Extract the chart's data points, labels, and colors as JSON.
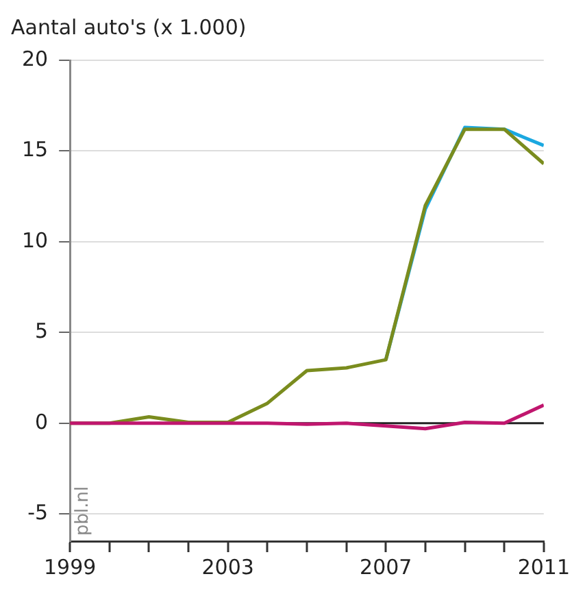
{
  "chart_data": {
    "type": "line",
    "title": "Aantal auto's (x 1.000)",
    "x": [
      1999,
      2000,
      2001,
      2002,
      2003,
      2004,
      2005,
      2006,
      2007,
      2008,
      2009,
      2010,
      2011
    ],
    "series": [
      {
        "color": "#1ba8e0",
        "values": [
          null,
          null,
          null,
          null,
          null,
          null,
          null,
          null,
          3.5,
          11.8,
          16.3,
          16.2,
          15.3
        ]
      },
      {
        "color": "#7a8c1e",
        "values": [
          0,
          0,
          0.35,
          0.05,
          0.05,
          1.1,
          2.9,
          3.05,
          3.5,
          12,
          16.2,
          16.2,
          14.3
        ]
      },
      {
        "color": "#c0166e",
        "values": [
          0,
          0,
          0,
          0,
          0,
          0,
          -0.05,
          0,
          -0.15,
          -0.3,
          0.05,
          0,
          1.0
        ]
      }
    ],
    "xlim": [
      1999,
      2011
    ],
    "xticks": [
      1999,
      {
        "value": 2000,
        "label": null
      },
      {
        "value": 2001,
        "label": null
      },
      {
        "value": 2002,
        "label": null
      },
      2003,
      {
        "value": 2004,
        "label": null
      },
      {
        "value": 2005,
        "label": null
      },
      {
        "value": 2006,
        "label": null
      },
      2007,
      {
        "value": 2008,
        "label": null
      },
      {
        "value": 2009,
        "label": null
      },
      {
        "value": 2010,
        "label": null
      },
      2011
    ],
    "ylim": [
      -6.5,
      20
    ],
    "yticks": [
      -5,
      0,
      5,
      10,
      15,
      20
    ],
    "ref_lines": [
      {
        "axis": "y",
        "value": 0,
        "color": "#222222"
      }
    ],
    "grid": "y",
    "legend": false,
    "marker": "none",
    "line_style": "solid",
    "annotations": [
      "pbl.nl"
    ]
  }
}
